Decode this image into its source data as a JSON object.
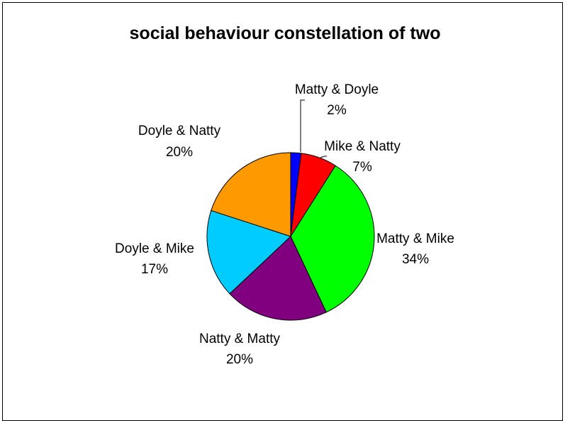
{
  "chart_data": {
    "type": "pie",
    "title": "social behaviour constellation of two",
    "slices": [
      {
        "label": "Matty & Doyle",
        "value": 2,
        "value_label": "2%",
        "color": "#0000ff"
      },
      {
        "label": "Mike & Natty",
        "value": 7,
        "value_label": "7%",
        "color": "#ff0000"
      },
      {
        "label": "Matty & Mike",
        "value": 34,
        "value_label": "34%",
        "color": "#00ff00"
      },
      {
        "label": "Natty & Matty",
        "value": 20,
        "value_label": "20%",
        "color": "#800080"
      },
      {
        "label": "Doyle & Mike",
        "value": 17,
        "value_label": "17%",
        "color": "#00ccff"
      },
      {
        "label": "Doyle & Natty",
        "value": 20,
        "value_label": "20%",
        "color": "#ff9900"
      }
    ],
    "start": "12 o'clock",
    "direction": "clockwise",
    "legend": "none"
  }
}
